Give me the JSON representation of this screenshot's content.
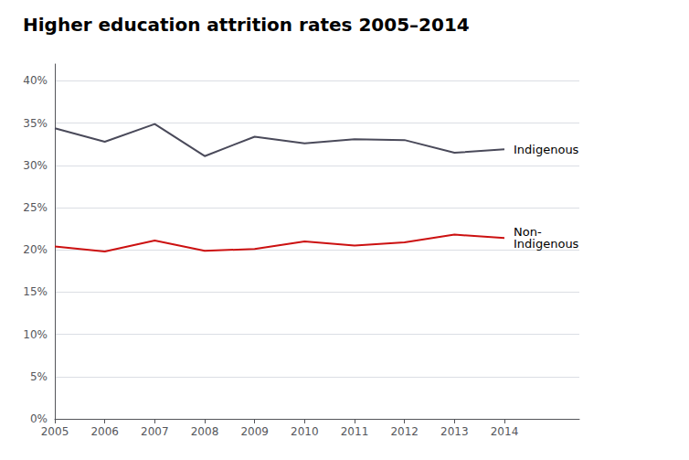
{
  "chart_data": {
    "type": "line",
    "title": "Higher education attrition rates 2005–2014",
    "x": [
      2005,
      2006,
      2007,
      2008,
      2009,
      2010,
      2011,
      2012,
      2013,
      2014
    ],
    "series": [
      {
        "name": "Indigenous",
        "color": "#4a4a5a",
        "values": [
          0.344,
          0.328,
          0.349,
          0.311,
          0.334,
          0.326,
          0.331,
          0.33,
          0.315,
          0.319
        ]
      },
      {
        "name": "Non-\nIndigenous",
        "color": "#cc1111",
        "values": [
          0.204,
          0.198,
          0.211,
          0.199,
          0.201,
          0.21,
          0.205,
          0.209,
          0.218,
          0.214
        ]
      }
    ],
    "xlim": [
      2005,
      2015.5
    ],
    "xticks": [
      2005,
      2006,
      2007,
      2008,
      2009,
      2010,
      2011,
      2012,
      2013,
      2014
    ],
    "ylim": [
      0,
      0.42
    ],
    "yticks": [
      {
        "value": 0,
        "label": "0%"
      },
      {
        "value": 0.05,
        "label": "5%"
      },
      {
        "value": 0.1,
        "label": "10%"
      },
      {
        "value": 0.15,
        "label": "15%"
      },
      {
        "value": 0.2,
        "label": "20%"
      },
      {
        "value": 0.25,
        "label": "25%"
      },
      {
        "value": 0.3,
        "label": "30%"
      },
      {
        "value": 0.35,
        "label": "35%"
      },
      {
        "value": 0.4,
        "label": "40%"
      }
    ],
    "grid": true
  }
}
